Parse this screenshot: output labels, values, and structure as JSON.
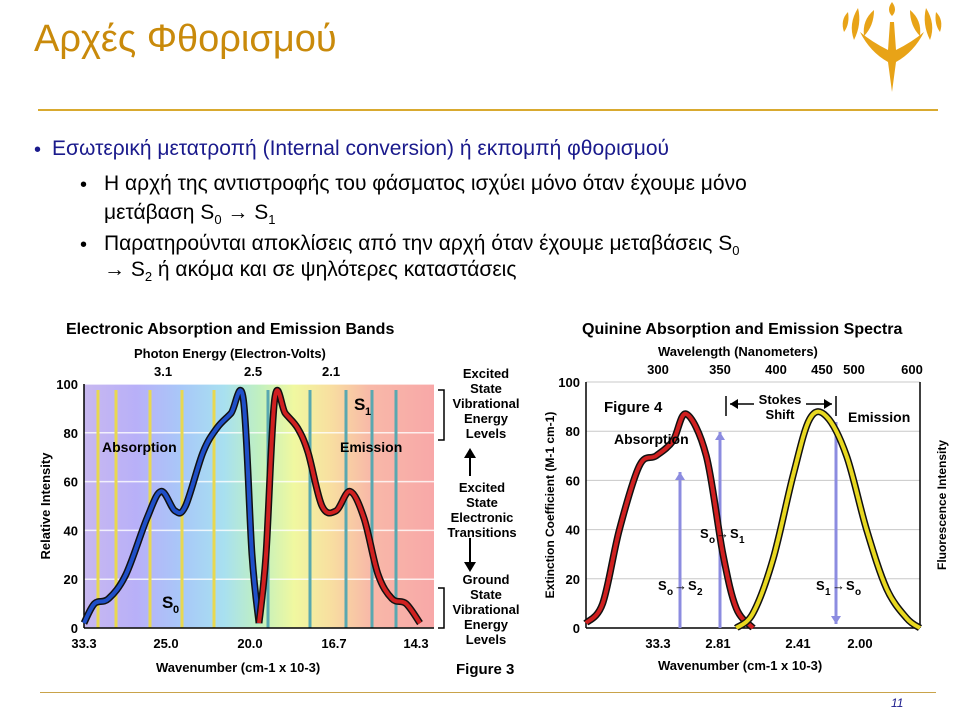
{
  "slide": {
    "title": "Αρχές Φθορισμού",
    "bullet1": "Εσωτερική μετατροπή (Internal conversion) ή εκπομπή φθορισμού",
    "sub1_line1": "Η αρχή της αντιστροφής του φάσματος ισχύει μόνο όταν έχουμε μόνο",
    "sub1_line2_pre": "μετάβαση S",
    "sub1_line2_sub0": "0",
    "sub1_line2_arrow": " → S",
    "sub1_line2_sub1": "1",
    "sub2_line1_pre": "Παρατηρούνται αποκλίσεις από την αρχή όταν έχουμε μεταβάσεις S",
    "sub2_line1_sub": "0",
    "sub2_line2_pre": "→ S",
    "sub2_line2_sub": "2",
    "sub2_line2_post": " ή ακόμα και σε ψηλότερες καταστάσεις",
    "page_number": "11"
  },
  "colors": {
    "title": "#c98a0b",
    "bullet_main": "#1a1a8c",
    "absorption_curve": "#1f4fc8",
    "emission_curve": "#d02020",
    "quinine_emission": "#e8d820",
    "logo": "#e8a317"
  },
  "chart_data": [
    {
      "type": "line",
      "title": "Electronic Absorption and Emission Bands",
      "top_axis_label": "Photon Energy (Electron-Volts)",
      "top_ticks": [
        "3.1",
        "2.5",
        "2.1"
      ],
      "xlabel": "Wavenumber (cm-1 x 10-3)",
      "x_ticks": [
        "33.3",
        "25.0",
        "20.0",
        "16.7",
        "14.3"
      ],
      "ylabel": "Relative Intensity",
      "y_ticks": [
        "0",
        "20",
        "40",
        "60",
        "80",
        "100"
      ],
      "ylim": [
        0,
        100
      ],
      "labels": {
        "absorption": "Absorption",
        "emission": "Emission",
        "s1": "S",
        "s1_sub": "1",
        "s0": "S",
        "s0_sub": "0"
      },
      "series": [
        {
          "name": "Absorption",
          "x": [
            0,
            0.03,
            0.07,
            0.12,
            0.18,
            0.22,
            0.26,
            0.29,
            0.34,
            0.38,
            0.42,
            0.455,
            0.48,
            0.5
          ],
          "y": [
            2,
            10,
            12,
            22,
            45,
            56,
            48,
            50,
            72,
            82,
            88,
            94,
            30,
            2
          ]
        },
        {
          "name": "Emission",
          "x": [
            0.5,
            0.52,
            0.545,
            0.575,
            0.61,
            0.64,
            0.68,
            0.72,
            0.76,
            0.8,
            0.84,
            0.88,
            0.92,
            0.96
          ],
          "y": [
            2,
            30,
            94,
            88,
            82,
            72,
            50,
            48,
            56,
            45,
            22,
            12,
            10,
            2
          ]
        }
      ]
    },
    {
      "type": "line",
      "title": "Quinine Absorption and Emission Spectra",
      "top_axis_label": "Wavelength (Nanometers)",
      "top_ticks": [
        "300",
        "350",
        "400",
        "450",
        "500",
        "600"
      ],
      "xlabel": "Wavenumber (cm-1 x 10-3)",
      "x_ticks": [
        "33.3",
        "2.81",
        "2.41",
        "2.00"
      ],
      "ylabel": "Extinction Coefficient (M-1 cm-1)",
      "right_label": "Fluorescence Intensity",
      "y_ticks": [
        "0",
        "20",
        "40",
        "60",
        "80",
        "100"
      ],
      "ylim": [
        0,
        100
      ],
      "figure_label": "Figure 4",
      "labels": {
        "absorption": "Absorption",
        "emission": "Emission",
        "stokes": "Stokes",
        "shift": "Shift"
      },
      "series": [
        {
          "name": "Absorption",
          "x": [
            0,
            0.05,
            0.1,
            0.16,
            0.21,
            0.26,
            0.3,
            0.36,
            0.41,
            0.45,
            0.5
          ],
          "y": [
            2,
            10,
            40,
            66,
            70,
            76,
            87,
            70,
            30,
            8,
            0
          ]
        },
        {
          "name": "Emission",
          "x": [
            0.45,
            0.5,
            0.56,
            0.62,
            0.67,
            0.72,
            0.78,
            0.84,
            0.9,
            0.96,
            1.0
          ],
          "y": [
            0,
            6,
            28,
            62,
            85,
            86,
            70,
            40,
            16,
            4,
            0
          ]
        }
      ]
    }
  ],
  "figure1": {
    "excited_state_label": [
      "Excited",
      "State",
      "Vibrational",
      "Energy",
      "Levels"
    ],
    "transitions_label": [
      "Excited",
      "State",
      "Electronic",
      "Transitions"
    ],
    "ground_state_label": [
      "Ground",
      "State",
      "Vibrational",
      "Energy",
      "Levels"
    ],
    "figure_label": "Figure 3"
  },
  "figure2": {
    "s0s1": [
      "S",
      "o",
      "→",
      "S",
      "1"
    ],
    "s0s2": [
      "S",
      "o",
      "→",
      "S",
      "2"
    ],
    "s1s0": [
      "S",
      "1",
      "→",
      "S",
      "o"
    ]
  }
}
